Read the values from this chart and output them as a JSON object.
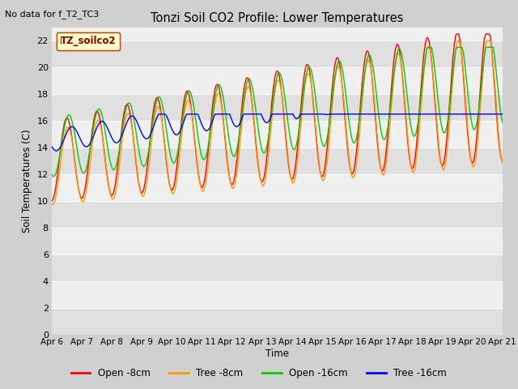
{
  "title": "Tonzi Soil CO2 Profile: Lower Temperatures",
  "subtitle": "No data for f_T2_TC3",
  "ylabel": "Soil Temperatures (C)",
  "xlabel": "Time",
  "legend_label": "TZ_soilco2",
  "ylim": [
    0,
    23
  ],
  "yticks": [
    0,
    2,
    4,
    6,
    8,
    10,
    12,
    14,
    16,
    18,
    20,
    22
  ],
  "x_tick_labels": [
    "Apr 6",
    "Apr 7",
    "Apr 8",
    "Apr 9",
    "Apr 10",
    "Apr 11",
    "Apr 12",
    "Apr 13",
    "Apr 14",
    "Apr 15",
    "Apr 16",
    "Apr 17",
    "Apr 18",
    "Apr 19",
    "Apr 20",
    "Apr 21"
  ],
  "colors": {
    "open_8cm": "#ff0000",
    "tree_8cm": "#ff9900",
    "open_16cm": "#00cc00",
    "tree_16cm": "#0000ff"
  },
  "labels": {
    "open_8cm": "Open -8cm",
    "tree_8cm": "Tree -8cm",
    "open_16cm": "Open -16cm",
    "tree_16cm": "Tree -16cm"
  },
  "fig_bg": "#d0d0d0",
  "plot_bg": "#f0f0f0",
  "band_color": "#e0e0e0"
}
